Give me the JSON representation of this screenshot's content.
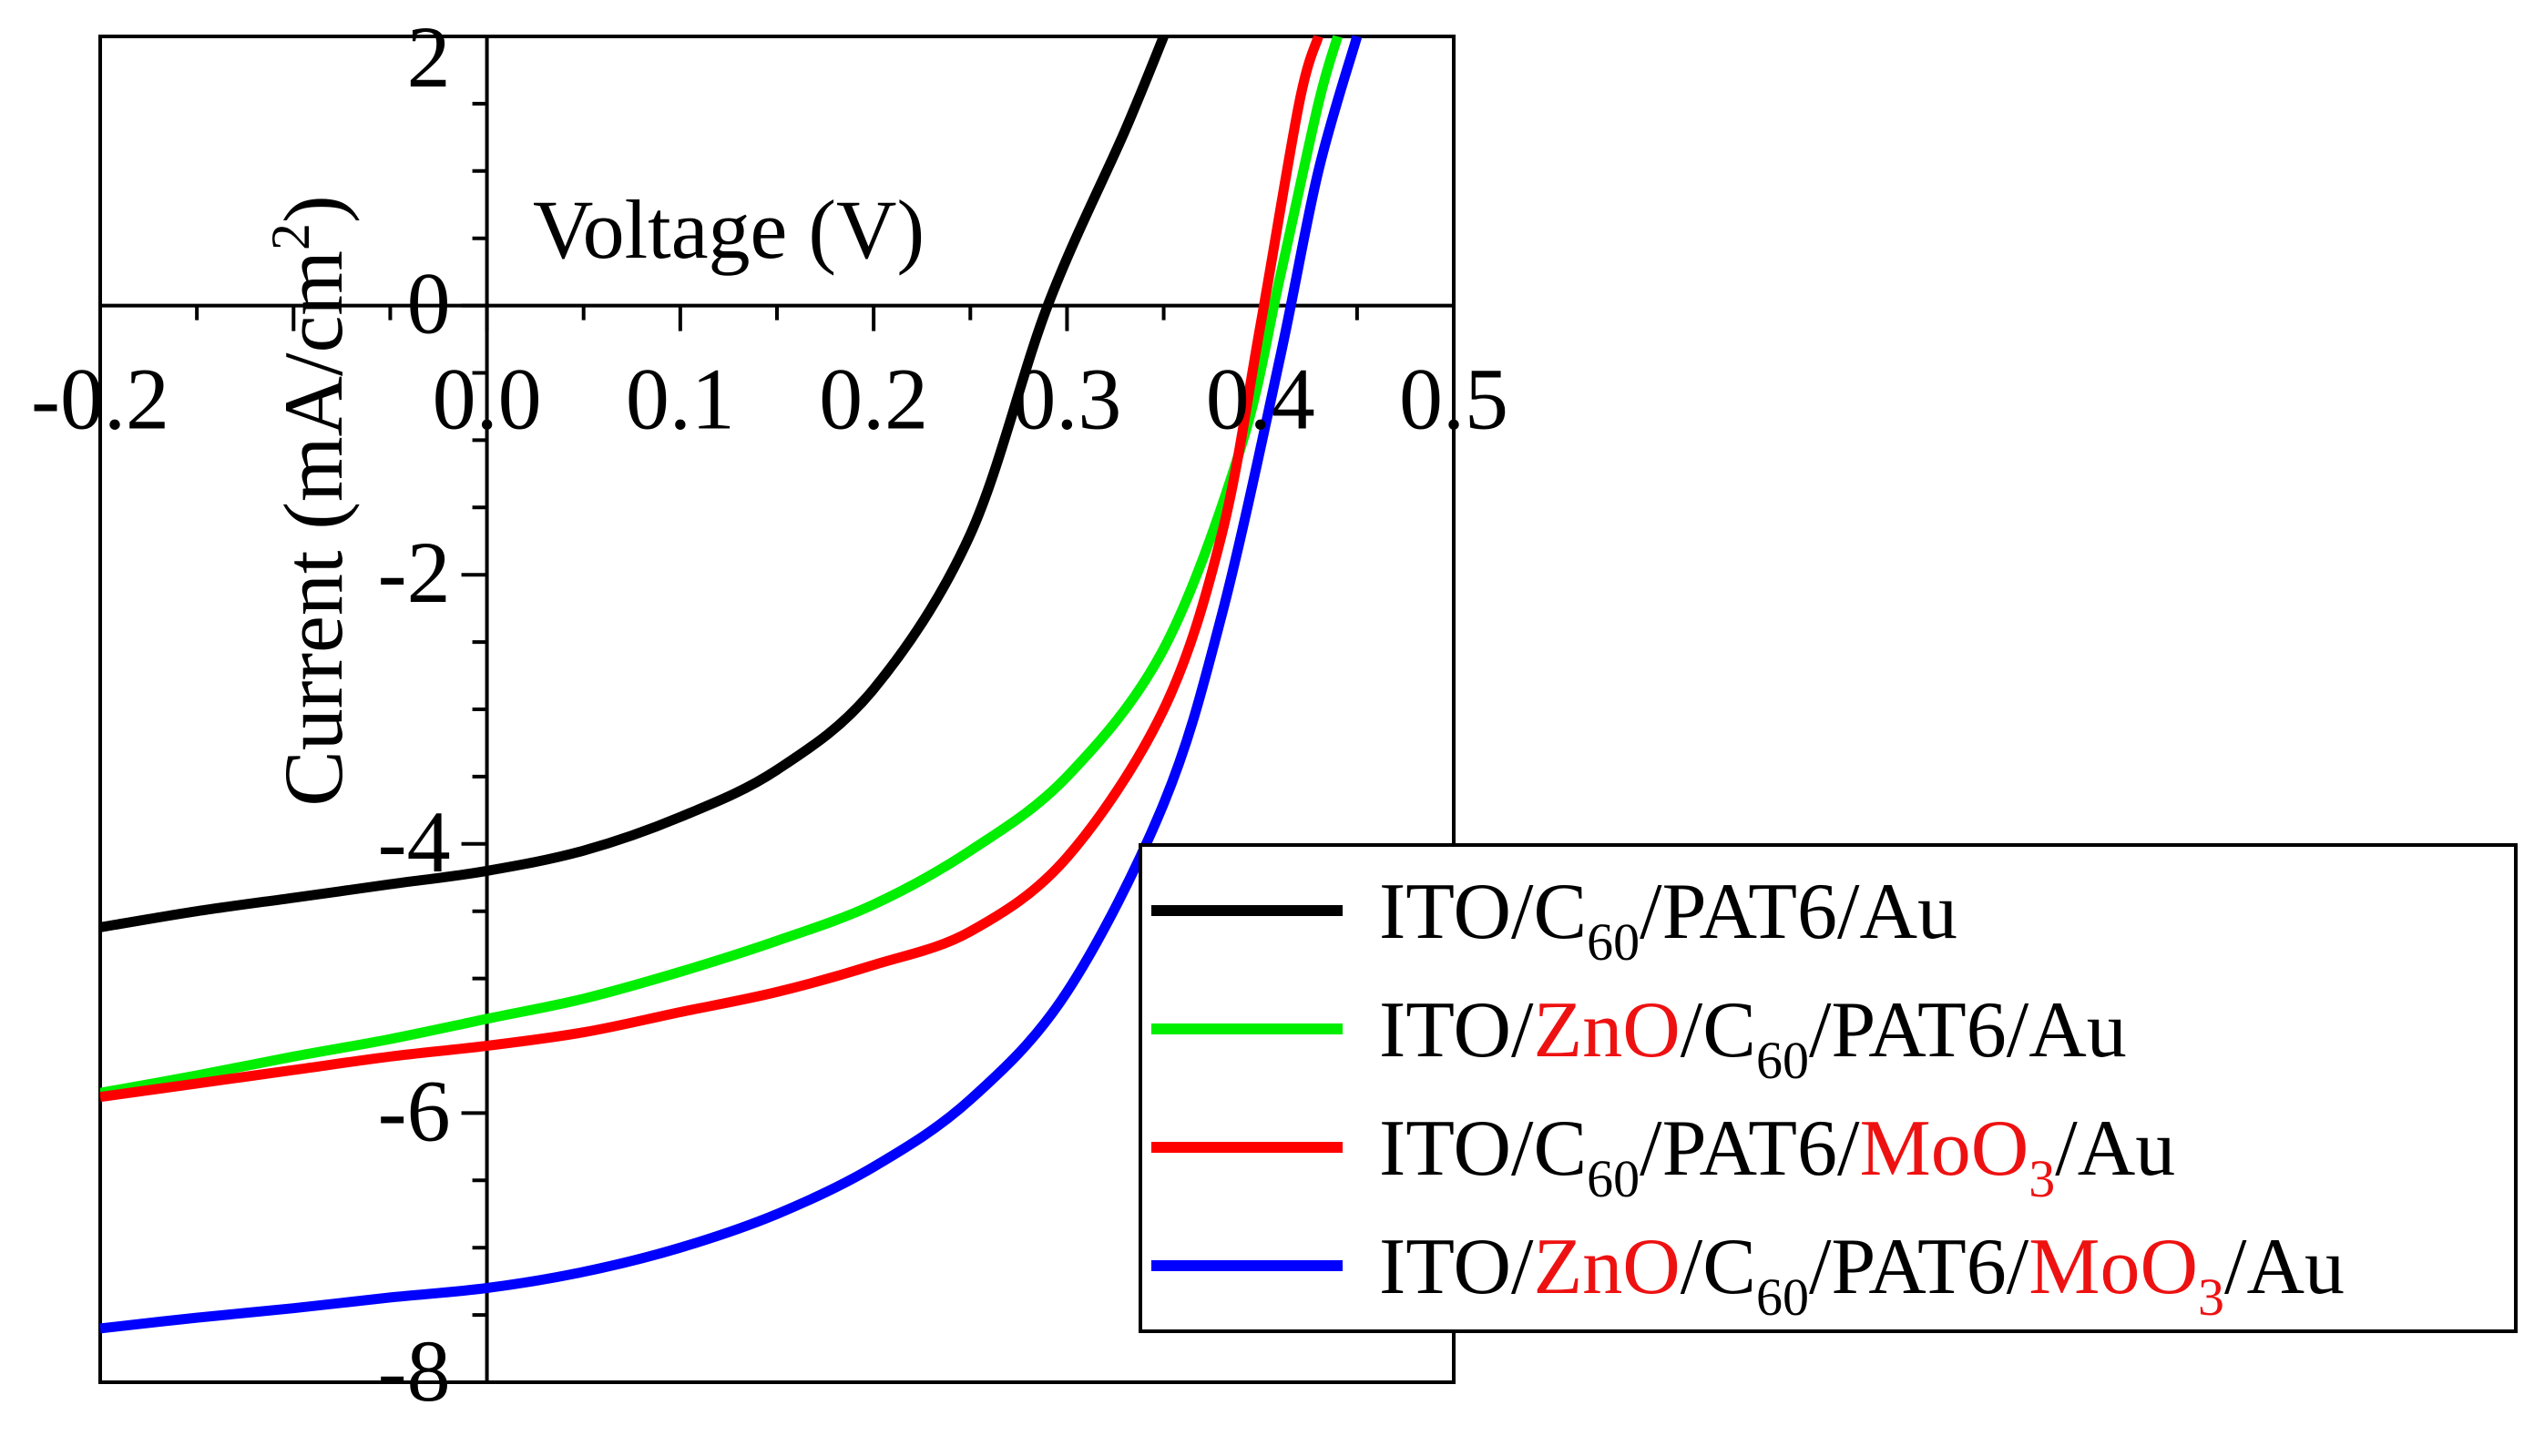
{
  "chart_data": {
    "type": "line",
    "title": "",
    "xlabel": "Voltage (V)",
    "ylabel": "Current (mA/cm²)",
    "ylabel_parts": {
      "main": "Current (mA/cm",
      "sup": "2",
      "close": ")"
    },
    "xlim": [
      -0.2,
      0.5
    ],
    "ylim": [
      -8,
      2
    ],
    "xticks": [
      {
        "value": -0.2,
        "label": "-0.2"
      },
      {
        "value": 0.0,
        "label": "0.0"
      },
      {
        "value": 0.1,
        "label": "0.1"
      },
      {
        "value": 0.2,
        "label": "0.2"
      },
      {
        "value": 0.3,
        "label": "0.3"
      },
      {
        "value": 0.4,
        "label": "0.4"
      },
      {
        "value": 0.5,
        "label": "0.5"
      }
    ],
    "yticks": [
      {
        "value": 2,
        "label": "2"
      },
      {
        "value": 0,
        "label": "0"
      },
      {
        "value": -2,
        "label": "-2"
      },
      {
        "value": -4,
        "label": "-4"
      },
      {
        "value": -6,
        "label": "-6"
      },
      {
        "value": -8,
        "label": "-8"
      }
    ],
    "legend_position": "bottom-right",
    "series": [
      {
        "name": "ITO/C60/PAT6/Au",
        "color": "#000000",
        "label_parts": [
          {
            "text": "ITO/C",
            "color": "#000000"
          },
          {
            "text": "60",
            "color": "#000000",
            "sub": true
          },
          {
            "text": "/PAT6/Au",
            "color": "#000000"
          }
        ],
        "points": [
          [
            -0.2,
            -4.62
          ],
          [
            -0.15,
            -4.5
          ],
          [
            -0.1,
            -4.4
          ],
          [
            -0.05,
            -4.3
          ],
          [
            0.0,
            -4.2
          ],
          [
            0.05,
            -4.05
          ],
          [
            0.1,
            -3.8
          ],
          [
            0.15,
            -3.45
          ],
          [
            0.2,
            -2.85
          ],
          [
            0.25,
            -1.7
          ],
          [
            0.29,
            0.0
          ],
          [
            0.33,
            1.3
          ],
          [
            0.35,
            2.0
          ]
        ]
      },
      {
        "name": "ITO/ZnO/C60/PAT6/Au",
        "color": "#00ee00",
        "label_parts": [
          {
            "text": "ITO/",
            "color": "#000000"
          },
          {
            "text": "ZnO",
            "color": "#ee1111"
          },
          {
            "text": "/C",
            "color": "#000000"
          },
          {
            "text": "60",
            "color": "#000000",
            "sub": true
          },
          {
            "text": "/PAT6/Au",
            "color": "#000000"
          }
        ],
        "points": [
          [
            -0.2,
            -5.85
          ],
          [
            -0.15,
            -5.72
          ],
          [
            -0.1,
            -5.58
          ],
          [
            -0.05,
            -5.45
          ],
          [
            0.0,
            -5.3
          ],
          [
            0.05,
            -5.15
          ],
          [
            0.1,
            -4.95
          ],
          [
            0.15,
            -4.72
          ],
          [
            0.2,
            -4.45
          ],
          [
            0.25,
            -4.05
          ],
          [
            0.3,
            -3.5
          ],
          [
            0.35,
            -2.55
          ],
          [
            0.39,
            -1.05
          ],
          [
            0.41,
            0.2
          ],
          [
            0.43,
            1.5
          ],
          [
            0.44,
            2.0
          ]
        ]
      },
      {
        "name": "ITO/C60/PAT6/MoO3/Au",
        "color": "#ff0000",
        "label_parts": [
          {
            "text": "ITO/C",
            "color": "#000000"
          },
          {
            "text": "60",
            "color": "#000000",
            "sub": true
          },
          {
            "text": "/PAT6/",
            "color": "#000000"
          },
          {
            "text": "MoO",
            "color": "#ee1111"
          },
          {
            "text": "3",
            "color": "#ee1111",
            "sub": true
          },
          {
            "text": "/Au",
            "color": "#000000"
          }
        ],
        "points": [
          [
            -0.2,
            -5.88
          ],
          [
            -0.15,
            -5.78
          ],
          [
            -0.1,
            -5.68
          ],
          [
            -0.05,
            -5.58
          ],
          [
            0.0,
            -5.5
          ],
          [
            0.05,
            -5.4
          ],
          [
            0.1,
            -5.25
          ],
          [
            0.15,
            -5.1
          ],
          [
            0.2,
            -4.9
          ],
          [
            0.25,
            -4.65
          ],
          [
            0.3,
            -4.1
          ],
          [
            0.35,
            -3.0
          ],
          [
            0.38,
            -1.7
          ],
          [
            0.4,
            -0.15
          ],
          [
            0.42,
            1.5
          ],
          [
            0.43,
            2.0
          ]
        ]
      },
      {
        "name": "ITO/ZnO/C60/PAT6/MoO3/Au",
        "color": "#0000ff",
        "label_parts": [
          {
            "text": "ITO/",
            "color": "#000000"
          },
          {
            "text": "ZnO",
            "color": "#ee1111"
          },
          {
            "text": "/C",
            "color": "#000000"
          },
          {
            "text": "60",
            "color": "#000000",
            "sub": true
          },
          {
            "text": "/PAT6/",
            "color": "#000000"
          },
          {
            "text": "MoO",
            "color": "#ee1111"
          },
          {
            "text": "3",
            "color": "#ee1111",
            "sub": true
          },
          {
            "text": "/Au",
            "color": "#000000"
          }
        ],
        "points": [
          [
            -0.2,
            -7.6
          ],
          [
            -0.15,
            -7.52
          ],
          [
            -0.1,
            -7.45
          ],
          [
            -0.05,
            -7.37
          ],
          [
            0.0,
            -7.3
          ],
          [
            0.05,
            -7.18
          ],
          [
            0.1,
            -7.0
          ],
          [
            0.15,
            -6.75
          ],
          [
            0.2,
            -6.4
          ],
          [
            0.25,
            -5.9
          ],
          [
            0.3,
            -5.1
          ],
          [
            0.35,
            -3.7
          ],
          [
            0.38,
            -2.3
          ],
          [
            0.41,
            -0.4
          ],
          [
            0.43,
            1.0
          ],
          [
            0.45,
            2.0
          ]
        ]
      }
    ]
  }
}
